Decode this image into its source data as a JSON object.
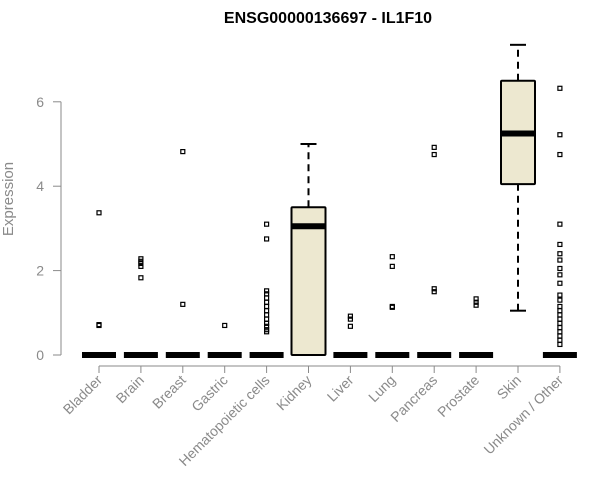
{
  "chart_data": {
    "type": "box",
    "title": "ENSG00000136697 - IL1F10",
    "xlabel": "",
    "ylabel": "Expression",
    "ylim": [
      0,
      7.4
    ],
    "yticks": [
      0,
      2,
      4,
      6
    ],
    "grid": false,
    "legend": "none",
    "box_fill": "#ede8d0",
    "categories": [
      "Bladder",
      "Brain",
      "Breast",
      "Gastric",
      "Hematopoietic cells",
      "Kidney",
      "Liver",
      "Lung",
      "Pancreas",
      "Prostate",
      "Skin",
      "Unknown / Other"
    ],
    "boxes": [
      {
        "name": "Bladder",
        "min": 0,
        "q1": 0,
        "median": 0,
        "q3": 0,
        "max": 0,
        "outliers": [
          0.7,
          0.72,
          3.37
        ]
      },
      {
        "name": "Brain",
        "min": 0,
        "q1": 0,
        "median": 0,
        "q3": 0,
        "max": 0,
        "outliers": [
          1.83,
          2.1,
          2.17,
          2.22,
          2.28
        ]
      },
      {
        "name": "Breast",
        "min": 0,
        "q1": 0,
        "median": 0,
        "q3": 0,
        "max": 0,
        "outliers": [
          1.2,
          4.82
        ]
      },
      {
        "name": "Gastric",
        "min": 0,
        "q1": 0,
        "median": 0,
        "q3": 0,
        "max": 0,
        "outliers": [
          0.7
        ]
      },
      {
        "name": "Hematopoietic cells",
        "min": 0,
        "q1": 0,
        "median": 0,
        "q3": 0,
        "max": 0,
        "outliers": [
          0.55,
          0.6,
          0.68,
          0.75,
          0.85,
          0.95,
          1.05,
          1.15,
          1.25,
          1.35,
          1.45,
          1.52,
          2.75,
          3.1
        ]
      },
      {
        "name": "Kidney",
        "min": 0,
        "q1": 0,
        "median": 3.05,
        "q3": 3.5,
        "max": 5.0,
        "outliers": []
      },
      {
        "name": "Liver",
        "min": 0,
        "q1": 0,
        "median": 0,
        "q3": 0,
        "max": 0,
        "outliers": [
          0.68,
          0.85,
          0.92
        ]
      },
      {
        "name": "Lung",
        "min": 0,
        "q1": 0,
        "median": 0,
        "q3": 0,
        "max": 0,
        "outliers": [
          1.13,
          1.15,
          2.1,
          2.33
        ]
      },
      {
        "name": "Pancreas",
        "min": 0,
        "q1": 0,
        "median": 0,
        "q3": 0,
        "max": 0,
        "outliers": [
          1.5,
          1.57,
          4.75,
          4.92
        ]
      },
      {
        "name": "Prostate",
        "min": 0,
        "q1": 0,
        "median": 0,
        "q3": 0,
        "max": 0,
        "outliers": [
          1.18,
          1.25,
          1.33
        ]
      },
      {
        "name": "Skin",
        "min": 1.05,
        "q1": 4.05,
        "median": 5.25,
        "q3": 6.5,
        "max": 7.35,
        "outliers": []
      },
      {
        "name": "Unknown / Other",
        "min": 0,
        "q1": 0,
        "median": 0,
        "q3": 0,
        "max": 0,
        "outliers": [
          0.25,
          0.35,
          0.45,
          0.55,
          0.65,
          0.75,
          0.85,
          0.95,
          1.05,
          1.15,
          1.3,
          1.42,
          1.7,
          1.9,
          2.05,
          2.25,
          2.4,
          2.62,
          3.1,
          4.75,
          5.22,
          6.32
        ]
      }
    ]
  }
}
